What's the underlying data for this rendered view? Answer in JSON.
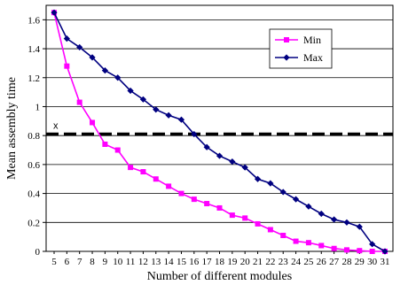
{
  "chart_data": {
    "type": "line",
    "title": "",
    "xlabel": "Number of different modules",
    "ylabel": "Mean assembly time",
    "x": [
      5,
      6,
      7,
      8,
      9,
      10,
      11,
      12,
      13,
      14,
      15,
      16,
      17,
      18,
      19,
      20,
      21,
      22,
      23,
      24,
      25,
      26,
      27,
      28,
      29,
      30,
      31
    ],
    "xlim": [
      5,
      31
    ],
    "ylim": [
      0,
      1.7
    ],
    "yticks": [
      0,
      0.2,
      0.4,
      0.6,
      0.8,
      1,
      1.2,
      1.4,
      1.6
    ],
    "grid": "horizontal",
    "legend_position": "top-right",
    "series": [
      {
        "name": "Min",
        "color": "#ff00ff",
        "marker": "square",
        "values": [
          1.65,
          1.28,
          1.03,
          0.89,
          0.74,
          0.7,
          0.58,
          0.55,
          0.5,
          0.45,
          0.4,
          0.36,
          0.33,
          0.3,
          0.25,
          0.23,
          0.19,
          0.15,
          0.11,
          0.07,
          0.06,
          0.04,
          0.02,
          0.01,
          0.005,
          0.0,
          0.0
        ]
      },
      {
        "name": "Max",
        "color": "#000080",
        "marker": "diamond",
        "values": [
          1.65,
          1.47,
          1.41,
          1.34,
          1.25,
          1.2,
          1.11,
          1.05,
          0.98,
          0.94,
          0.91,
          0.81,
          0.72,
          0.66,
          0.62,
          0.58,
          0.5,
          0.47,
          0.41,
          0.36,
          0.31,
          0.26,
          0.22,
          0.2,
          0.17,
          0.05,
          0.0
        ]
      }
    ],
    "annotations": [
      {
        "label": "x",
        "y": 0.81,
        "style": "dashed-horizontal-line",
        "color": "#000000"
      }
    ]
  }
}
